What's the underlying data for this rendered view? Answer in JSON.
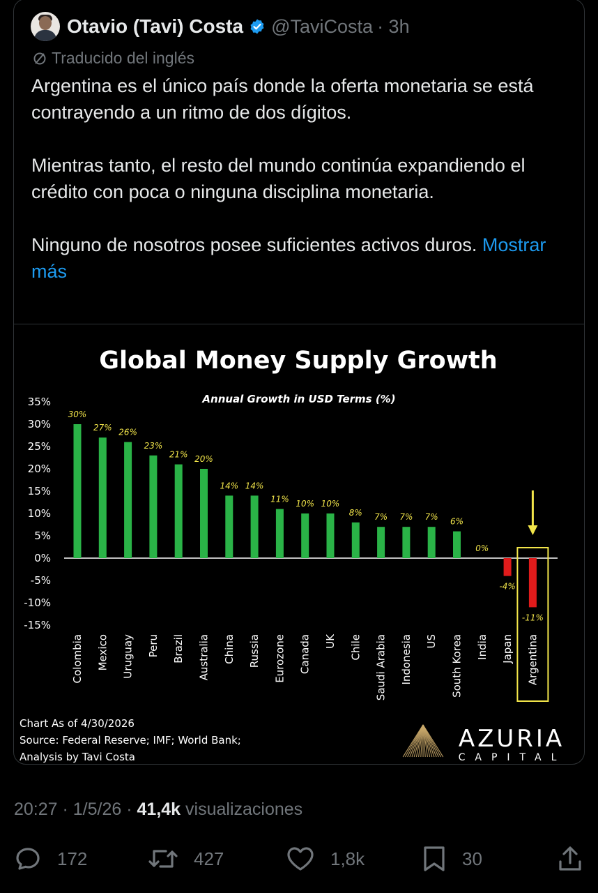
{
  "tweet": {
    "author_name": "Otavio (Tavi) Costa",
    "handle": "@TaviCosta",
    "time": "· 3h",
    "translated_label": "Traducido del inglés",
    "paragraphs": [
      "Argentina es el único país donde la oferta monetaria se está contrayendo a un ritmo de dos dígitos.",
      "Mientras tanto, el resto del mundo continúa expandiendo el crédito con poca o ninguna disciplina monetaria.",
      "Ninguno de nosotros posee suficientes activos duros."
    ],
    "show_more": "Mostrar más",
    "timestamp": "20:27 · 1/5/26 ·",
    "views_count": "41,4k",
    "views_label": "visualizaciones",
    "replies": "172",
    "reposts": "427",
    "likes": "1,8k",
    "bookmarks": "30"
  },
  "colors": {
    "accent": "#1d9bf0",
    "positive_bar": "#2ab347",
    "negative_bar": "#e01b1b",
    "highlight": "#f2e54a"
  },
  "chart_data": {
    "type": "bar",
    "title": "Global Money Supply Growth",
    "subtitle": "Annual Growth in USD Terms (%)",
    "categories": [
      "Colombia",
      "Mexico",
      "Uruguay",
      "Peru",
      "Brazil",
      "Australia",
      "China",
      "Russia",
      "Eurozone",
      "Canada",
      "UK",
      "Chile",
      "Saudi Arabia",
      "Indonesia",
      "US",
      "South Korea",
      "India",
      "Japan",
      "Argentina"
    ],
    "values": [
      30,
      27,
      26,
      23,
      21,
      20,
      14,
      14,
      11,
      10,
      10,
      8,
      7,
      7,
      7,
      6,
      0,
      -4,
      -11
    ],
    "data_labels": [
      "30%",
      "27%",
      "26%",
      "23%",
      "21%",
      "20%",
      "14%",
      "14%",
      "11%",
      "10%",
      "10%",
      "8%",
      "7%",
      "7%",
      "7%",
      "6%",
      "0%",
      "-4%",
      "-11%"
    ],
    "y_ticks": [
      35,
      30,
      25,
      20,
      15,
      10,
      5,
      0,
      -5,
      -10,
      -15
    ],
    "y_tick_labels": [
      "35%",
      "30%",
      "25%",
      "20%",
      "15%",
      "10%",
      "5%",
      "0%",
      "-5%",
      "-10%",
      "-15%"
    ],
    "ylim": [
      -15,
      35
    ],
    "highlighted_category": "Argentina",
    "grid": false,
    "footnotes": [
      "Chart As of 4/30/2026",
      "Source: Federal Reserve; IMF; World Bank;",
      "Analysis by Tavi Costa"
    ],
    "logo_text": "AZURIA",
    "logo_subtext": "CAPITAL"
  }
}
